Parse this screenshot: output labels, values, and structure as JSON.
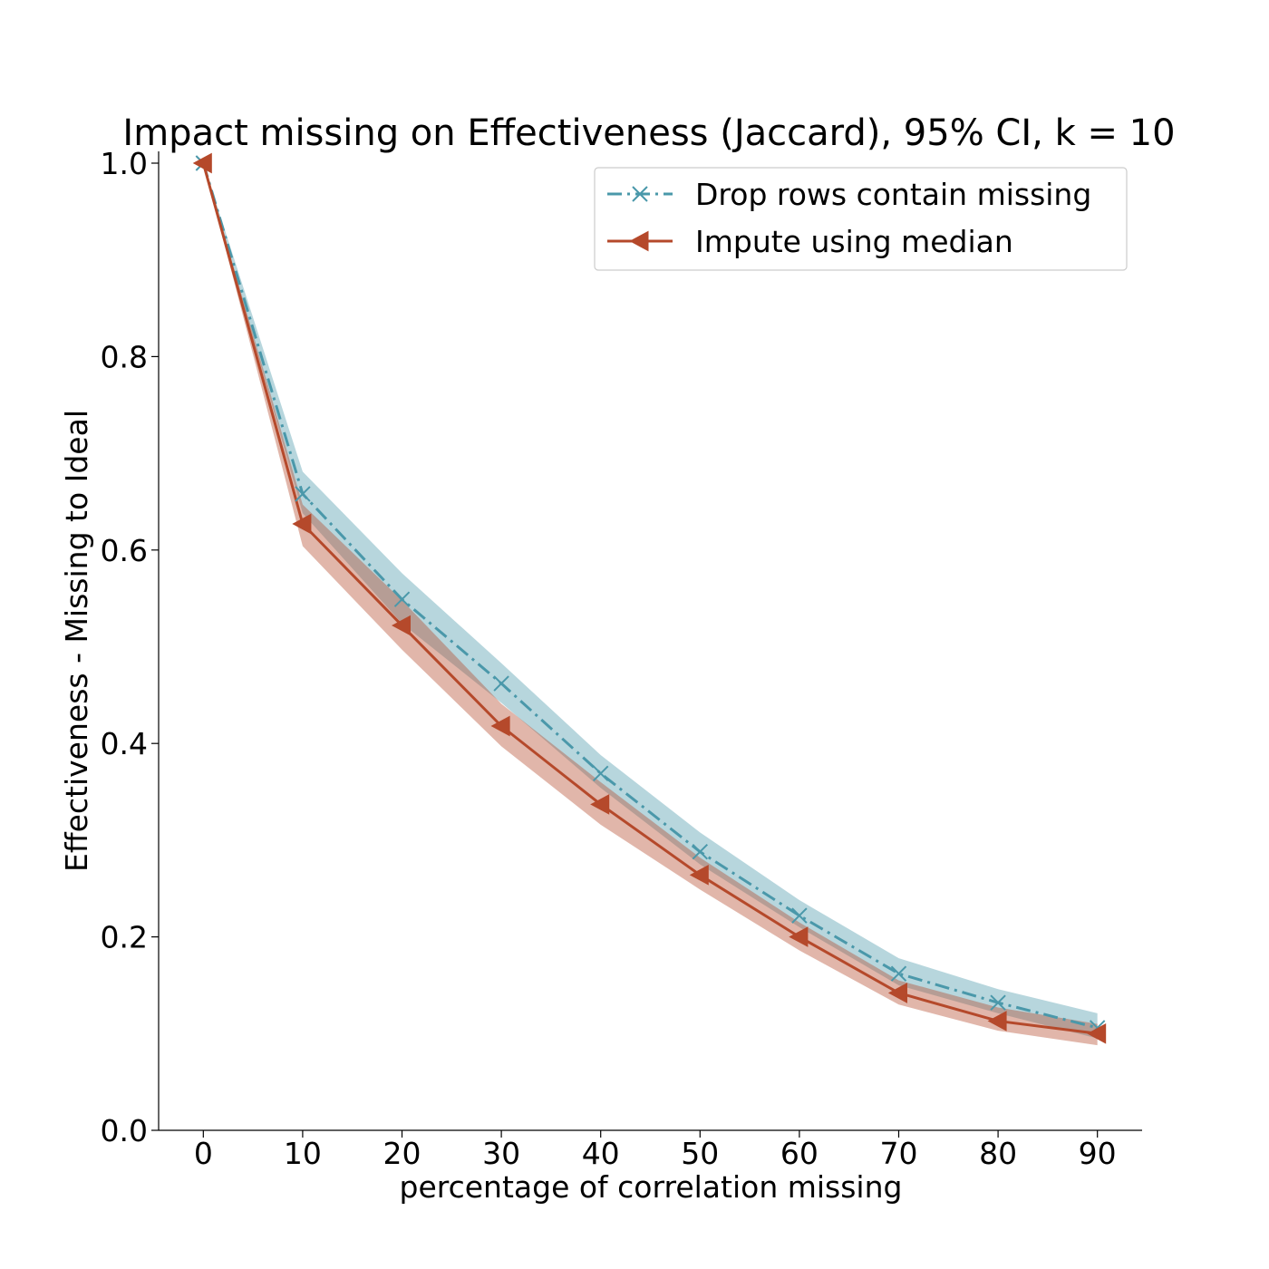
{
  "chart_data": {
    "type": "line",
    "title": "Impact missing on Effectiveness (Jaccard), 95% CI, k = 10",
    "xlabel": "percentage of correlation missing",
    "ylabel": "Effectiveness - Missing to Ideal",
    "x": [
      0,
      10,
      20,
      30,
      40,
      50,
      60,
      70,
      80,
      90
    ],
    "xlim": [
      -4.5,
      94.5
    ],
    "ylim": [
      0.0,
      1.0
    ],
    "xticks": [
      "0",
      "10",
      "20",
      "30",
      "40",
      "50",
      "60",
      "70",
      "80",
      "90"
    ],
    "yticks": [
      "0.0",
      "0.2",
      "0.4",
      "0.6",
      "0.8",
      "1.0"
    ],
    "grid": false,
    "legend_position": "top-right",
    "series": [
      {
        "name": "Drop rows contain missing",
        "color": "#4a98aa",
        "line_style": "dash-dot",
        "marker": "x",
        "values": [
          1.0,
          0.658,
          0.549,
          0.462,
          0.369,
          0.288,
          0.222,
          0.162,
          0.132,
          0.106
        ],
        "ci_lower": [
          1.0,
          0.638,
          0.524,
          0.442,
          0.354,
          0.275,
          0.21,
          0.15,
          0.121,
          0.095
        ],
        "ci_upper": [
          1.0,
          0.681,
          0.576,
          0.483,
          0.388,
          0.308,
          0.238,
          0.178,
          0.146,
          0.121
        ]
      },
      {
        "name": "Impute using median",
        "color": "#b5492b",
        "line_style": "solid",
        "marker": "triangle-left",
        "values": [
          1.0,
          0.627,
          0.522,
          0.418,
          0.337,
          0.264,
          0.2,
          0.142,
          0.113,
          0.1
        ],
        "ci_lower": [
          1.0,
          0.604,
          0.497,
          0.397,
          0.316,
          0.249,
          0.186,
          0.13,
          0.103,
          0.088
        ],
        "ci_upper": [
          1.0,
          0.647,
          0.548,
          0.441,
          0.36,
          0.282,
          0.215,
          0.155,
          0.127,
          0.11
        ]
      }
    ]
  }
}
